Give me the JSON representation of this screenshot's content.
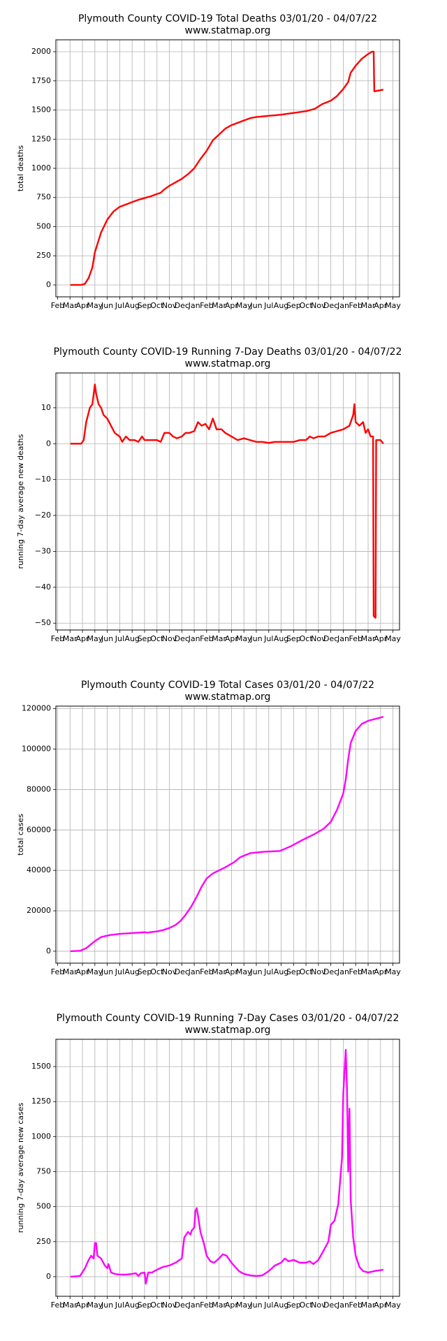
{
  "chart_data": [
    {
      "type": "line",
      "title": "Plymouth County COVID-19 Total Deaths 03/01/20 - 04/07/22",
      "subtitle": "www.statmap.org",
      "ylabel": "total deaths",
      "grid": true,
      "xlim": [
        -0.14,
        27.53
      ],
      "ylim": [
        -102,
        2102
      ],
      "xticks": [
        {
          "value": 0,
          "label": "Feb"
        },
        {
          "value": 1,
          "label": "Mar"
        },
        {
          "value": 2,
          "label": "Apr"
        },
        {
          "value": 3,
          "label": "May"
        },
        {
          "value": 4,
          "label": "Jun"
        },
        {
          "value": 5,
          "label": "Jul"
        },
        {
          "value": 6,
          "label": "Aug"
        },
        {
          "value": 7,
          "label": "Sep"
        },
        {
          "value": 8,
          "label": "Oct"
        },
        {
          "value": 9,
          "label": "Nov"
        },
        {
          "value": 10,
          "label": "Dec"
        },
        {
          "value": 11,
          "label": "Jan"
        },
        {
          "value": 12,
          "label": "Feb"
        },
        {
          "value": 13,
          "label": "Mar"
        },
        {
          "value": 14,
          "label": "Apr"
        },
        {
          "value": 15,
          "label": "May"
        },
        {
          "value": 16,
          "label": "Jun"
        },
        {
          "value": 17,
          "label": "Jul"
        },
        {
          "value": 18,
          "label": "Aug"
        },
        {
          "value": 19,
          "label": "Sep"
        },
        {
          "value": 20,
          "label": "Oct"
        },
        {
          "value": 21,
          "label": "Nov"
        },
        {
          "value": 22,
          "label": "Dec"
        },
        {
          "value": 23,
          "label": "Jan"
        },
        {
          "value": 24,
          "label": "Feb"
        },
        {
          "value": 25,
          "label": "Mar"
        },
        {
          "value": 26,
          "label": "Apr"
        },
        {
          "value": 27,
          "label": "May"
        }
      ],
      "yticks": [
        0,
        250,
        500,
        750,
        1000,
        1250,
        1500,
        1750,
        2000
      ],
      "x": [
        1.03,
        1.9,
        2.2,
        2.5,
        2.8,
        3.0,
        3.5,
        4.0,
        4.5,
        5.0,
        5.5,
        6.0,
        6.5,
        7.0,
        7.5,
        8.0,
        8.3,
        8.6,
        9.0,
        9.5,
        10.0,
        10.5,
        11.0,
        11.5,
        12.0,
        12.5,
        13.0,
        13.5,
        14.0,
        14.5,
        15.0,
        15.5,
        16.0,
        16.5,
        17.0,
        17.5,
        18.0,
        19.0,
        20.0,
        20.7,
        21.3,
        22.0,
        22.5,
        23.0,
        23.4,
        23.6,
        24.0,
        24.5,
        25.0,
        25.3,
        25.45,
        25.5,
        26.23
      ],
      "series": [
        {
          "color": "#ff0000",
          "values": [
            0,
            0,
            10,
            60,
            150,
            280,
            450,
            560,
            630,
            670,
            690,
            710,
            730,
            745,
            760,
            780,
            790,
            820,
            850,
            880,
            910,
            950,
            1000,
            1080,
            1150,
            1240,
            1290,
            1340,
            1370,
            1390,
            1410,
            1430,
            1440,
            1445,
            1450,
            1455,
            1460,
            1475,
            1490,
            1510,
            1550,
            1580,
            1620,
            1680,
            1740,
            1820,
            1880,
            1940,
            1980,
            2000,
            2000,
            1660,
            1675
          ]
        }
      ]
    },
    {
      "type": "line",
      "title": "Plymouth County COVID-19 Running 7-Day Deaths 03/01/20 - 04/07/22",
      "subtitle": "www.statmap.org",
      "ylabel": "running 7-day average new deaths",
      "grid": true,
      "xlim": [
        -0.14,
        27.53
      ],
      "ylim": [
        -51.9,
        19.7
      ],
      "xticks": [
        {
          "value": 0,
          "label": "Feb"
        },
        {
          "value": 1,
          "label": "Mar"
        },
        {
          "value": 2,
          "label": "Apr"
        },
        {
          "value": 3,
          "label": "May"
        },
        {
          "value": 4,
          "label": "Jun"
        },
        {
          "value": 5,
          "label": "Jul"
        },
        {
          "value": 6,
          "label": "Aug"
        },
        {
          "value": 7,
          "label": "Sep"
        },
        {
          "value": 8,
          "label": "Oct"
        },
        {
          "value": 9,
          "label": "Nov"
        },
        {
          "value": 10,
          "label": "Dec"
        },
        {
          "value": 11,
          "label": "Jan"
        },
        {
          "value": 12,
          "label": "Feb"
        },
        {
          "value": 13,
          "label": "Mar"
        },
        {
          "value": 14,
          "label": "Apr"
        },
        {
          "value": 15,
          "label": "May"
        },
        {
          "value": 16,
          "label": "Jun"
        },
        {
          "value": 17,
          "label": "Jul"
        },
        {
          "value": 18,
          "label": "Aug"
        },
        {
          "value": 19,
          "label": "Sep"
        },
        {
          "value": 20,
          "label": "Oct"
        },
        {
          "value": 21,
          "label": "Nov"
        },
        {
          "value": 22,
          "label": "Dec"
        },
        {
          "value": 23,
          "label": "Jan"
        },
        {
          "value": 24,
          "label": "Feb"
        },
        {
          "value": 25,
          "label": "Mar"
        },
        {
          "value": 26,
          "label": "Apr"
        },
        {
          "value": 27,
          "label": "May"
        }
      ],
      "yticks": [
        {
          "value": -50,
          "label": "−50"
        },
        {
          "value": -40,
          "label": "−40"
        },
        {
          "value": -30,
          "label": "−30"
        },
        {
          "value": -20,
          "label": "−20"
        },
        {
          "value": -10,
          "label": "−10"
        },
        0,
        10
      ],
      "x": [
        1.03,
        1.9,
        2.1,
        2.3,
        2.6,
        2.8,
        3.0,
        3.1,
        3.3,
        3.5,
        3.7,
        4.0,
        4.3,
        4.6,
        5.0,
        5.2,
        5.5,
        5.8,
        6.2,
        6.5,
        6.8,
        7.0,
        7.5,
        8.0,
        8.3,
        8.6,
        9.0,
        9.3,
        9.6,
        10.0,
        10.3,
        10.6,
        11.0,
        11.3,
        11.6,
        11.9,
        12.2,
        12.5,
        12.8,
        13.2,
        13.5,
        14.0,
        14.5,
        15.0,
        15.5,
        16.0,
        16.5,
        17.0,
        17.5,
        18.0,
        18.5,
        19.0,
        19.5,
        20.0,
        20.3,
        20.6,
        21.0,
        21.5,
        22.0,
        22.5,
        23.0,
        23.5,
        23.8,
        23.9,
        24.0,
        24.3,
        24.6,
        24.8,
        25.0,
        25.2,
        25.4,
        25.45,
        25.6,
        25.65,
        26.0,
        26.23
      ],
      "series": [
        {
          "color": "#ff0000",
          "values": [
            0,
            0,
            1,
            6,
            10,
            11,
            16.5,
            14,
            11,
            10,
            8,
            7,
            5,
            3,
            2,
            0.5,
            2,
            1,
            1,
            0.5,
            2,
            1,
            1,
            1,
            0.5,
            3,
            3,
            2,
            1.5,
            2,
            3,
            3,
            3.5,
            6,
            5,
            5.5,
            4,
            7,
            4,
            4,
            3,
            2,
            1,
            1.5,
            1,
            0.5,
            0.5,
            0.2,
            0.5,
            0.5,
            0.5,
            0.5,
            1,
            1,
            2,
            1.5,
            2,
            2,
            3,
            3.5,
            4,
            5,
            8,
            11,
            6,
            5,
            6,
            3,
            4,
            2,
            2,
            -48,
            -48.5,
            1,
            1,
            0
          ]
        }
      ]
    },
    {
      "type": "line",
      "title": "Plymouth County COVID-19 Total Cases 03/01/20 - 04/07/22",
      "subtitle": "www.statmap.org",
      "ylabel": "total cases",
      "grid": true,
      "xlim": [
        -0.14,
        27.53
      ],
      "ylim": [
        -5895,
        121263
      ],
      "xticks": [
        {
          "value": 0,
          "label": "Feb"
        },
        {
          "value": 1,
          "label": "Mar"
        },
        {
          "value": 2,
          "label": "Apr"
        },
        {
          "value": 3,
          "label": "May"
        },
        {
          "value": 4,
          "label": "Jun"
        },
        {
          "value": 5,
          "label": "Jul"
        },
        {
          "value": 6,
          "label": "Aug"
        },
        {
          "value": 7,
          "label": "Sep"
        },
        {
          "value": 8,
          "label": "Oct"
        },
        {
          "value": 9,
          "label": "Nov"
        },
        {
          "value": 10,
          "label": "Dec"
        },
        {
          "value": 11,
          "label": "Jan"
        },
        {
          "value": 12,
          "label": "Feb"
        },
        {
          "value": 13,
          "label": "Mar"
        },
        {
          "value": 14,
          "label": "Apr"
        },
        {
          "value": 15,
          "label": "May"
        },
        {
          "value": 16,
          "label": "Jun"
        },
        {
          "value": 17,
          "label": "Jul"
        },
        {
          "value": 18,
          "label": "Aug"
        },
        {
          "value": 19,
          "label": "Sep"
        },
        {
          "value": 20,
          "label": "Oct"
        },
        {
          "value": 21,
          "label": "Nov"
        },
        {
          "value": 22,
          "label": "Dec"
        },
        {
          "value": 23,
          "label": "Jan"
        },
        {
          "value": 24,
          "label": "Feb"
        },
        {
          "value": 25,
          "label": "Mar"
        },
        {
          "value": 26,
          "label": "Apr"
        },
        {
          "value": 27,
          "label": "May"
        }
      ],
      "yticks": [
        0,
        20000,
        40000,
        60000,
        80000,
        100000,
        120000
      ],
      "x": [
        1.03,
        1.8,
        2.3,
        2.7,
        3.0,
        3.5,
        4.2,
        5.0,
        6.0,
        7.0,
        7.2,
        8.0,
        8.5,
        9.0,
        9.5,
        9.9,
        10.3,
        10.75,
        11.2,
        11.6,
        12.0,
        12.5,
        13.5,
        14.2,
        14.7,
        15.5,
        16.6,
        17.9,
        18.8,
        19.7,
        20.7,
        21.4,
        22.0,
        22.5,
        23.0,
        23.2,
        23.4,
        23.6,
        24.0,
        24.5,
        25.0,
        25.5,
        26.23
      ],
      "series": [
        {
          "color": "#ff00ff",
          "values": [
            0,
            200,
            1500,
            3500,
            5000,
            7000,
            8000,
            8600,
            9000,
            9400,
            9200,
            9800,
            10500,
            11500,
            13000,
            15000,
            18000,
            22000,
            27000,
            32000,
            36000,
            38500,
            41500,
            44000,
            46500,
            48500,
            49200,
            49600,
            52000,
            55000,
            58000,
            60500,
            64000,
            70000,
            78000,
            85000,
            95000,
            103000,
            109000,
            112500,
            114000,
            114800,
            116000
          ]
        }
      ]
    },
    {
      "type": "line",
      "title": "Plymouth County COVID-19 Running 7-Day Cases 03/01/20 - 04/07/22",
      "subtitle": "www.statmap.org",
      "ylabel": "running 7-day average new cases",
      "grid": true,
      "xlim": [
        -0.14,
        27.53
      ],
      "ylim": [
        -140,
        1695
      ],
      "xticks": [
        {
          "value": 0,
          "label": "Feb"
        },
        {
          "value": 1,
          "label": "Mar"
        },
        {
          "value": 2,
          "label": "Apr"
        },
        {
          "value": 3,
          "label": "May"
        },
        {
          "value": 4,
          "label": "Jun"
        },
        {
          "value": 5,
          "label": "Jul"
        },
        {
          "value": 6,
          "label": "Aug"
        },
        {
          "value": 7,
          "label": "Sep"
        },
        {
          "value": 8,
          "label": "Oct"
        },
        {
          "value": 9,
          "label": "Nov"
        },
        {
          "value": 10,
          "label": "Dec"
        },
        {
          "value": 11,
          "label": "Jan"
        },
        {
          "value": 12,
          "label": "Feb"
        },
        {
          "value": 13,
          "label": "Mar"
        },
        {
          "value": 14,
          "label": "Apr"
        },
        {
          "value": 15,
          "label": "May"
        },
        {
          "value": 16,
          "label": "Jun"
        },
        {
          "value": 17,
          "label": "Jul"
        },
        {
          "value": 18,
          "label": "Aug"
        },
        {
          "value": 19,
          "label": "Sep"
        },
        {
          "value": 20,
          "label": "Oct"
        },
        {
          "value": 21,
          "label": "Nov"
        },
        {
          "value": 22,
          "label": "Dec"
        },
        {
          "value": 23,
          "label": "Jan"
        },
        {
          "value": 24,
          "label": "Feb"
        },
        {
          "value": 25,
          "label": "Mar"
        },
        {
          "value": 26,
          "label": "Apr"
        },
        {
          "value": 27,
          "label": "May"
        }
      ],
      "yticks": [
        0,
        250,
        500,
        750,
        1000,
        1250,
        1500
      ],
      "x": [
        1.03,
        1.8,
        2.2,
        2.5,
        2.7,
        2.9,
        3.0,
        3.1,
        3.2,
        3.5,
        3.8,
        4.0,
        4.1,
        4.3,
        4.6,
        5.0,
        5.5,
        6.0,
        6.3,
        6.5,
        6.7,
        7.0,
        7.1,
        7.3,
        7.6,
        8.0,
        8.5,
        9.0,
        9.5,
        10.0,
        10.2,
        10.5,
        10.7,
        10.8,
        11.0,
        11.1,
        11.2,
        11.3,
        11.5,
        11.8,
        12.0,
        12.3,
        12.6,
        13.0,
        13.3,
        13.6,
        14.0,
        14.3,
        14.6,
        15.0,
        15.5,
        16.0,
        16.5,
        17.0,
        17.5,
        18.0,
        18.3,
        18.6,
        19.0,
        19.5,
        20.0,
        20.3,
        20.6,
        21.0,
        21.5,
        21.8,
        22.0,
        22.3,
        22.6,
        22.9,
        23.0,
        23.2,
        23.3,
        23.4,
        23.5,
        23.6,
        23.8,
        24.0,
        24.3,
        24.6,
        25.0,
        25.5,
        26.23
      ],
      "series": [
        {
          "color": "#ff00ff",
          "values": [
            0,
            5,
            60,
            120,
            150,
            130,
            240,
            240,
            150,
            130,
            80,
            60,
            90,
            30,
            20,
            15,
            15,
            20,
            25,
            5,
            25,
            30,
            -50,
            30,
            30,
            50,
            70,
            80,
            100,
            130,
            280,
            320,
            300,
            330,
            350,
            470,
            490,
            440,
            320,
            230,
            150,
            110,
            100,
            130,
            160,
            150,
            100,
            70,
            40,
            20,
            10,
            5,
            10,
            40,
            80,
            100,
            130,
            110,
            120,
            100,
            100,
            110,
            90,
            120,
            200,
            250,
            370,
            400,
            520,
            850,
            1300,
            1620,
            1350,
            750,
            1200,
            550,
            280,
            150,
            70,
            40,
            30,
            40,
            50
          ]
        }
      ]
    }
  ]
}
